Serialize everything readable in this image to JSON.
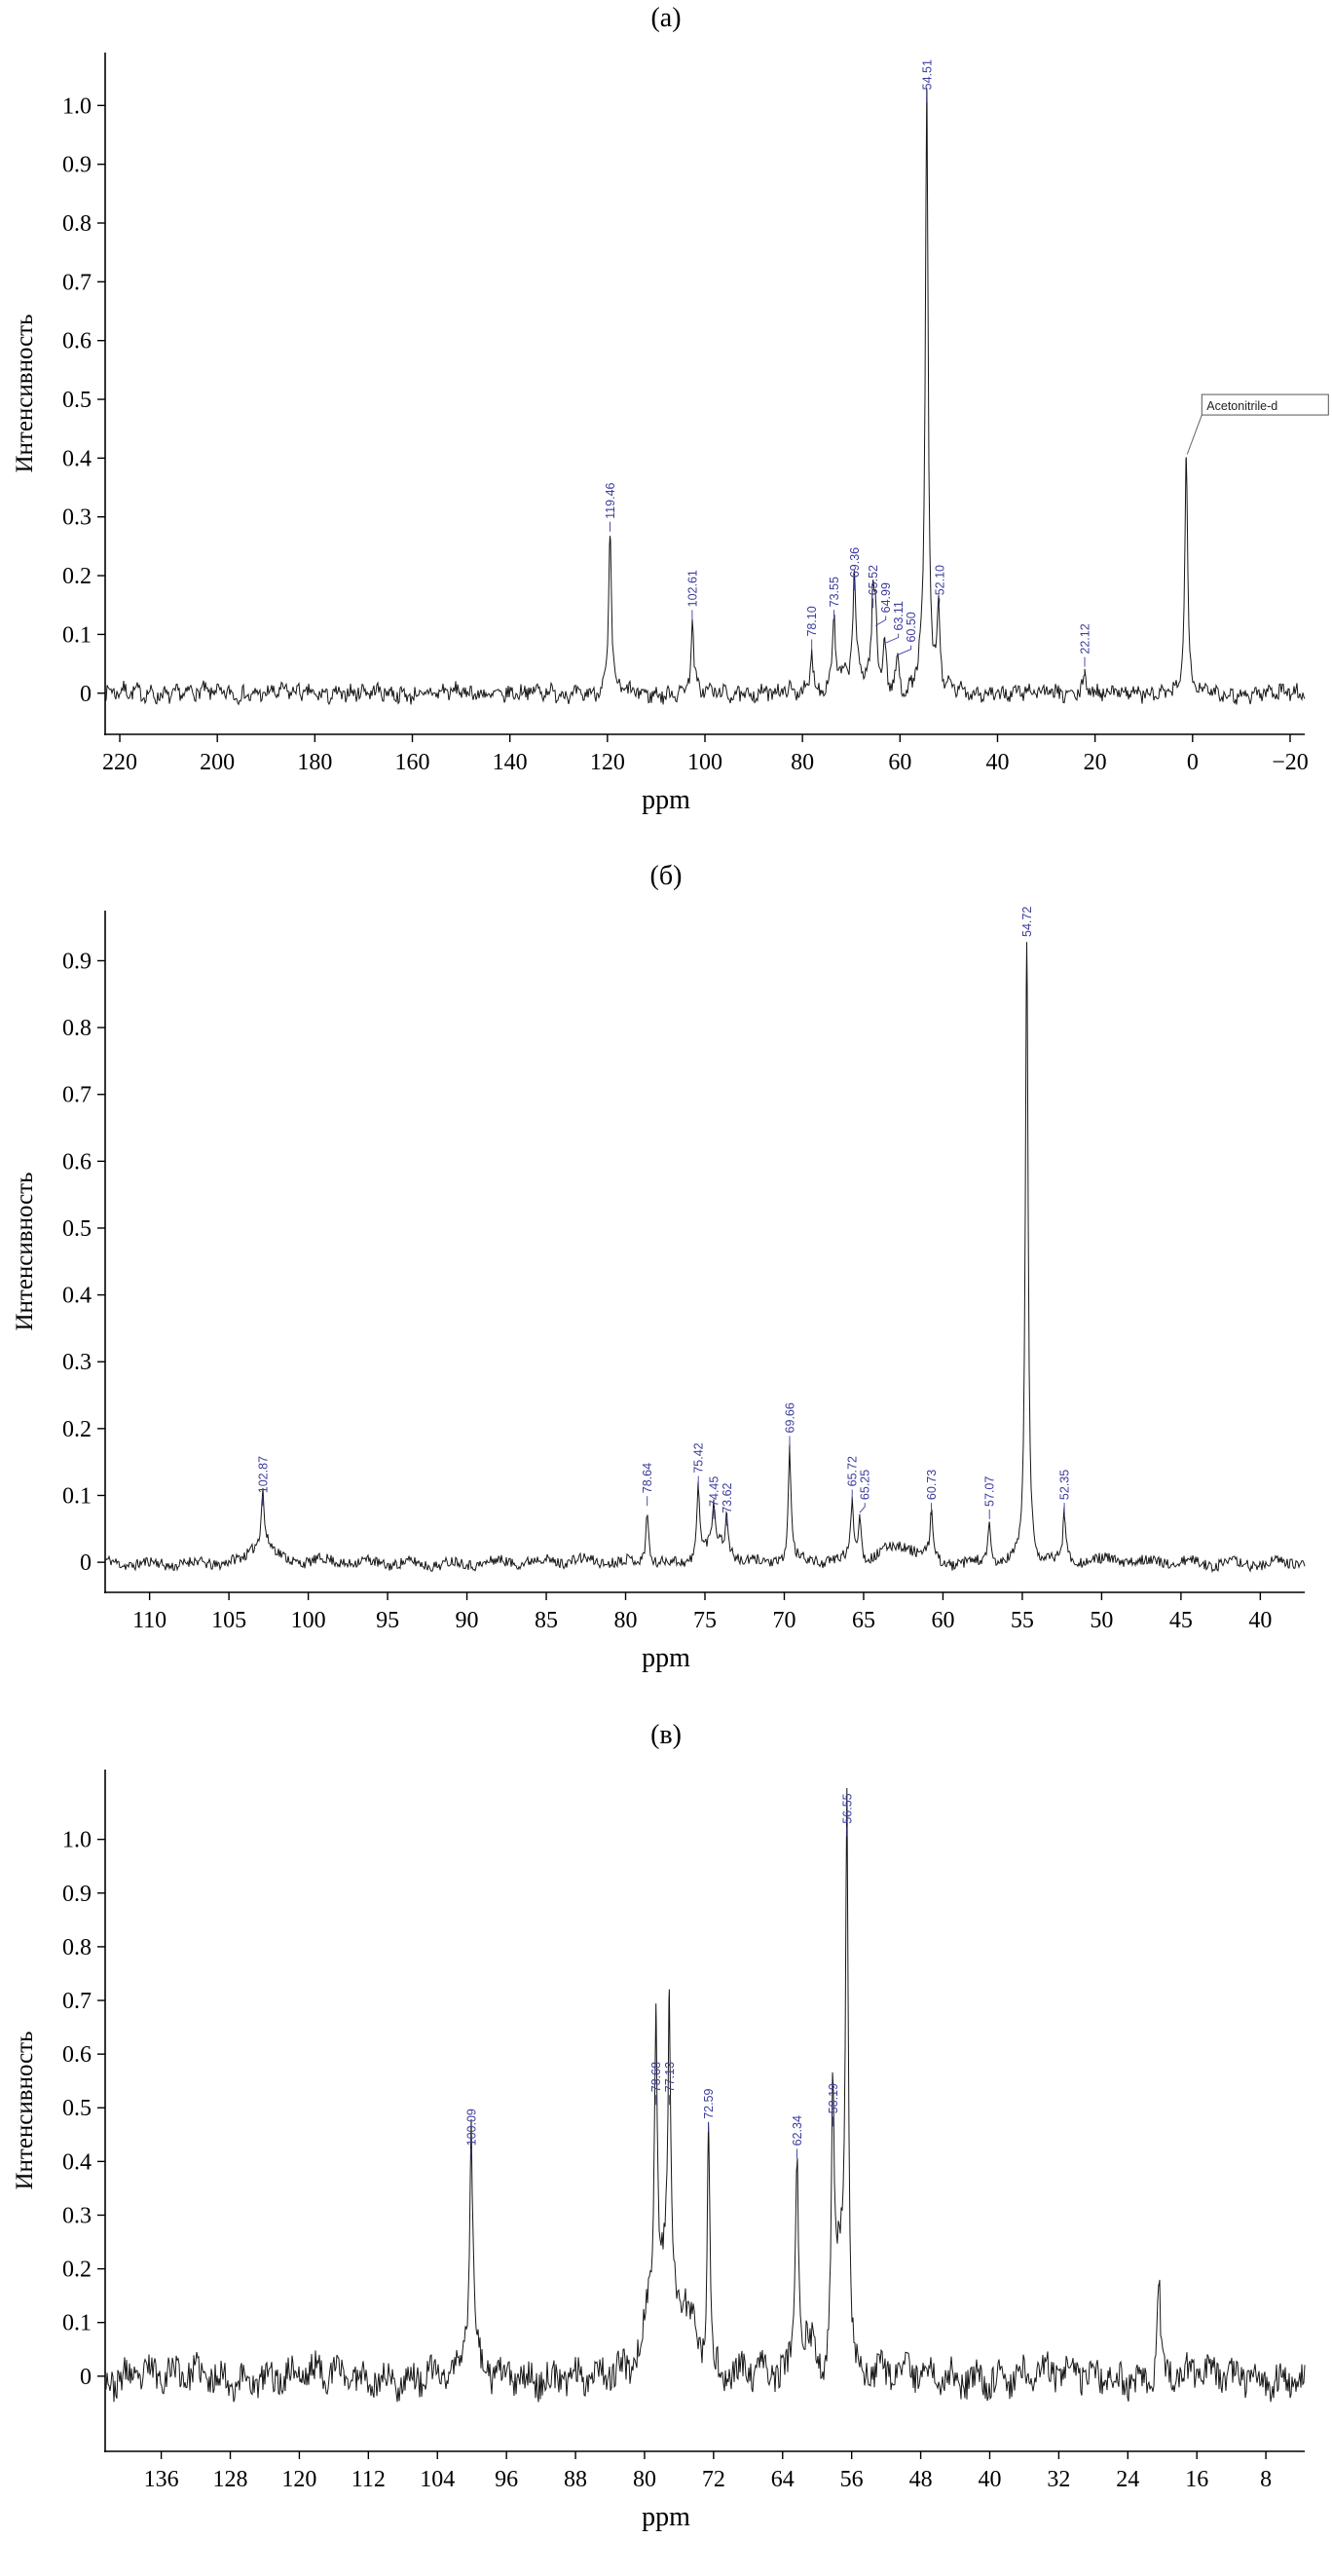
{
  "figure": {
    "background": "#ffffff",
    "axis_color": "#000000",
    "trace_color": "#161616",
    "peak_label_color": "#3c3c9e",
    "annotation_border_color": "#555555",
    "annotation_text_color": "#222222"
  },
  "chart_data": [
    {
      "type": "line",
      "title": "(а)",
      "xlabel": "ppm",
      "ylabel": "Интенсивность",
      "xlim": [
        223,
        -23
      ],
      "ylim": [
        -0.07,
        1.09
      ],
      "xticks": [
        220,
        200,
        180,
        160,
        140,
        120,
        100,
        80,
        60,
        40,
        20,
        0,
        -20
      ],
      "yticks": [
        0,
        0.1,
        0.2,
        0.3,
        0.4,
        0.5,
        0.6,
        0.7,
        0.8,
        0.9,
        1.0
      ],
      "grid": false,
      "noise_amp": 0.012,
      "seed": 7,
      "peaks": [
        {
          "ppm": 119.46,
          "height": 0.27,
          "label": "119.46"
        },
        {
          "ppm": 102.61,
          "height": 0.12,
          "label": "102.61"
        },
        {
          "ppm": 78.1,
          "height": 0.07,
          "label": "78.10"
        },
        {
          "ppm": 73.55,
          "height": 0.12,
          "label": "73.55"
        },
        {
          "ppm": 69.36,
          "height": 0.17,
          "label": "69.36"
        },
        {
          "ppm": 65.52,
          "height": 0.14,
          "label": "65.52"
        },
        {
          "ppm": 64.99,
          "height": 0.11,
          "label": "64.99"
        },
        {
          "ppm": 63.11,
          "height": 0.08,
          "label": "63.11"
        },
        {
          "ppm": 60.5,
          "height": 0.06,
          "label": "60.50"
        },
        {
          "ppm": 54.51,
          "height": 1.0,
          "label": "54.51"
        },
        {
          "ppm": 52.1,
          "height": 0.14,
          "label": "52.10"
        },
        {
          "ppm": 22.12,
          "height": 0.04,
          "label": "22.12"
        },
        {
          "ppm": 1.3,
          "height": 0.41,
          "label": ""
        }
      ],
      "humps": [
        {
          "ppm": 70.0,
          "height": 0.03,
          "width": 5.0
        },
        {
          "ppm": 55.5,
          "height": 0.04,
          "width": 1.5
        }
      ],
      "annotation": {
        "text": "Acetonitrile-d",
        "ppm": 1.3,
        "box_y": 0.49,
        "peak_y": 0.41
      }
    },
    {
      "type": "line",
      "title": "(б)",
      "xlabel": "ppm",
      "ylabel": "Интенсивность",
      "xlim": [
        112.8,
        37.2
      ],
      "ylim": [
        -0.045,
        0.975
      ],
      "xticks": [
        110,
        105,
        100,
        95,
        90,
        85,
        80,
        75,
        70,
        65,
        60,
        55,
        50,
        45,
        40
      ],
      "yticks": [
        0,
        0.1,
        0.2,
        0.3,
        0.4,
        0.5,
        0.6,
        0.7,
        0.8,
        0.9
      ],
      "grid": false,
      "noise_amp": 0.008,
      "seed": 11,
      "peaks": [
        {
          "ppm": 102.87,
          "height": 0.08,
          "label": "102.87"
        },
        {
          "ppm": 78.64,
          "height": 0.08,
          "label": "78.64"
        },
        {
          "ppm": 75.42,
          "height": 0.11,
          "label": "75.42"
        },
        {
          "ppm": 74.45,
          "height": 0.06,
          "label": "74.45"
        },
        {
          "ppm": 73.62,
          "height": 0.05,
          "label": "73.62"
        },
        {
          "ppm": 69.66,
          "height": 0.17,
          "label": "69.66"
        },
        {
          "ppm": 65.72,
          "height": 0.09,
          "label": "65.72"
        },
        {
          "ppm": 65.25,
          "height": 0.07,
          "label": "65.25"
        },
        {
          "ppm": 60.73,
          "height": 0.07,
          "label": "60.73"
        },
        {
          "ppm": 57.07,
          "height": 0.06,
          "label": "57.07"
        },
        {
          "ppm": 54.72,
          "height": 0.93,
          "label": "54.72"
        },
        {
          "ppm": 52.35,
          "height": 0.07,
          "label": "52.35"
        }
      ],
      "humps": [
        {
          "ppm": 102.9,
          "height": 0.03,
          "width": 0.9
        },
        {
          "ppm": 74.3,
          "height": 0.03,
          "width": 1.2
        },
        {
          "ppm": 62.6,
          "height": 0.025,
          "width": 1.5
        }
      ]
    },
    {
      "type": "line",
      "title": "(в)",
      "xlabel": "ppm",
      "ylabel": "Интенсивность",
      "xlim": [
        142.5,
        3.5
      ],
      "ylim": [
        -0.14,
        1.13
      ],
      "xticks": [
        136,
        128,
        120,
        112,
        104,
        96,
        88,
        80,
        72,
        64,
        56,
        48,
        40,
        32,
        24,
        16,
        8
      ],
      "yticks": [
        0,
        0.1,
        0.2,
        0.3,
        0.4,
        0.5,
        0.6,
        0.7,
        0.8,
        0.9,
        1.0
      ],
      "grid": false,
      "noise_amp": 0.028,
      "seed": 23,
      "peaks": [
        {
          "ppm": 100.09,
          "height": 0.4,
          "label": "100.09"
        },
        {
          "ppm": 78.68,
          "height": 0.5,
          "label": "78.68"
        },
        {
          "ppm": 77.13,
          "height": 0.5,
          "label": "77.13"
        },
        {
          "ppm": 72.59,
          "height": 0.45,
          "label": "72.59"
        },
        {
          "ppm": 62.34,
          "height": 0.4,
          "label": "62.34"
        },
        {
          "ppm": 58.19,
          "height": 0.46,
          "label": "58.19"
        },
        {
          "ppm": 56.55,
          "height": 1.0,
          "label": "56.55"
        },
        {
          "ppm": 20.4,
          "height": 0.18,
          "label": ""
        }
      ],
      "humps": [
        {
          "ppm": 78.0,
          "height": 0.2,
          "width": 2.2
        },
        {
          "ppm": 75.0,
          "height": 0.1,
          "width": 1.5
        },
        {
          "ppm": 61.0,
          "height": 0.06,
          "width": 1.5
        },
        {
          "ppm": 57.3,
          "height": 0.22,
          "width": 0.9
        },
        {
          "ppm": 100.1,
          "height": 0.08,
          "width": 0.8
        }
      ]
    }
  ]
}
